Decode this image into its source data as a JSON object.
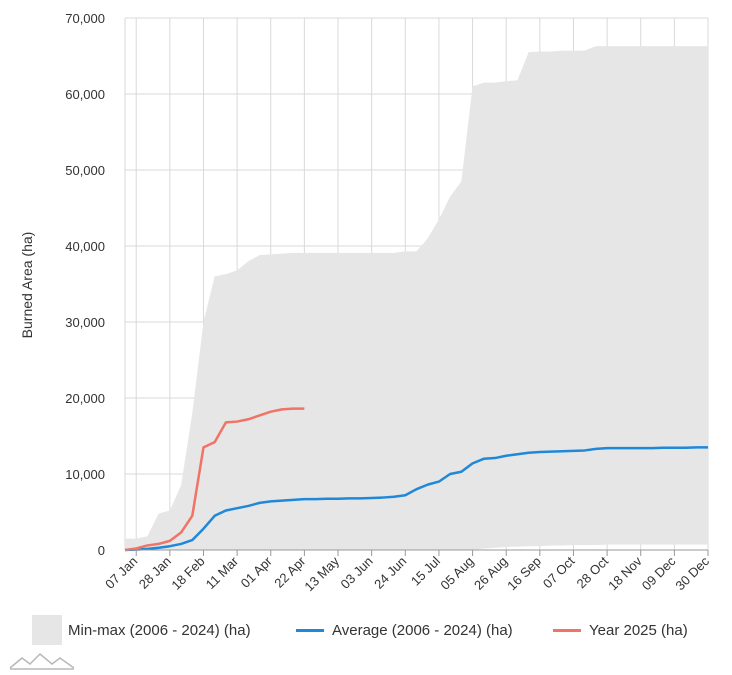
{
  "chart_data": {
    "type": "area",
    "ylabel": "Burned Area (ha)",
    "xlabel": "",
    "ylim": [
      0,
      70000
    ],
    "y_ticks": [
      "0",
      "10,000",
      "20,000",
      "30,000",
      "40,000",
      "50,000",
      "60,000",
      "70,000"
    ],
    "y_tick_values": [
      0,
      10000,
      20000,
      30000,
      40000,
      50000,
      60000,
      70000
    ],
    "x_ticks": [
      "07 Jan",
      "28 Jan",
      "18 Feb",
      "11 Mar",
      "01 Apr",
      "22 Apr",
      "13 May",
      "03 Jun",
      "24 Jun",
      "15 Jul",
      "05 Aug",
      "26 Aug",
      "16 Sep",
      "07 Oct",
      "28 Oct",
      "18 Nov",
      "09 Dec",
      "30 Dec"
    ],
    "grid": true,
    "legend_position": "bottom",
    "colors": {
      "range": "#e6e6e6",
      "average": "#1f88d8",
      "year": "#f07366",
      "grid": "#d9d9d9"
    },
    "x_dates": [
      "01 Jan",
      "07 Jan",
      "14 Jan",
      "21 Jan",
      "28 Jan",
      "04 Feb",
      "11 Feb",
      "18 Feb",
      "25 Feb",
      "04 Mar",
      "11 Mar",
      "18 Mar",
      "25 Mar",
      "01 Apr",
      "08 Apr",
      "15 Apr",
      "22 Apr",
      "29 Apr",
      "06 May",
      "13 May",
      "20 May",
      "27 May",
      "03 Jun",
      "10 Jun",
      "17 Jun",
      "24 Jun",
      "01 Jul",
      "08 Jul",
      "15 Jul",
      "22 Jul",
      "29 Jul",
      "05 Aug",
      "12 Aug",
      "19 Aug",
      "26 Aug",
      "02 Sep",
      "09 Sep",
      "16 Sep",
      "23 Sep",
      "30 Sep",
      "07 Oct",
      "14 Oct",
      "21 Oct",
      "28 Oct",
      "04 Nov",
      "11 Nov",
      "18 Nov",
      "25 Nov",
      "02 Dec",
      "09 Dec",
      "16 Dec",
      "23 Dec",
      "30 Dec"
    ],
    "series": [
      {
        "name": "Min-max (2006 - 2024) (ha)",
        "type": "range",
        "max": [
          1500,
          1500,
          1800,
          4800,
          5200,
          8500,
          18000,
          30000,
          36000,
          36300,
          36800,
          38000,
          38800,
          38900,
          39000,
          39100,
          39100,
          39100,
          39100,
          39100,
          39100,
          39100,
          39100,
          39100,
          39100,
          39300,
          39300,
          41000,
          43500,
          46500,
          48500,
          61000,
          61500,
          61500,
          61700,
          61800,
          65500,
          65600,
          65600,
          65700,
          65700,
          65700,
          66300,
          66300,
          66300,
          66300,
          66300,
          66300,
          66300,
          66300,
          66300,
          66300,
          66300
        ],
        "min": [
          0,
          0,
          0,
          0,
          0,
          0,
          0,
          0,
          0,
          0,
          0,
          0,
          0,
          0,
          0,
          0,
          0,
          0,
          0,
          0,
          0,
          0,
          0,
          0,
          0,
          0,
          0,
          0,
          0,
          0,
          0,
          0,
          200,
          300,
          400,
          450,
          500,
          500,
          600,
          600,
          650,
          650,
          650,
          700,
          700,
          700,
          700,
          700,
          700,
          700,
          700,
          700,
          700
        ]
      },
      {
        "name": "Average (2006 - 2024) (ha)",
        "type": "line",
        "values": [
          0,
          50,
          150,
          300,
          500,
          800,
          1300,
          2800,
          4500,
          5200,
          5500,
          5800,
          6200,
          6400,
          6500,
          6600,
          6700,
          6700,
          6750,
          6750,
          6800,
          6800,
          6850,
          6900,
          7000,
          7200,
          8000,
          8600,
          9000,
          10000,
          10300,
          11400,
          12000,
          12100,
          12400,
          12600,
          12800,
          12900,
          12950,
          13000,
          13050,
          13100,
          13300,
          13400,
          13400,
          13400,
          13400,
          13400,
          13450,
          13450,
          13450,
          13500,
          13500
        ]
      },
      {
        "name": "Year 2025 (ha)",
        "type": "line",
        "values": [
          0,
          200,
          600,
          800,
          1200,
          2300,
          4500,
          13500,
          14200,
          16800,
          16900,
          17200,
          17700,
          18200,
          18500,
          18600,
          18600
        ]
      }
    ]
  }
}
